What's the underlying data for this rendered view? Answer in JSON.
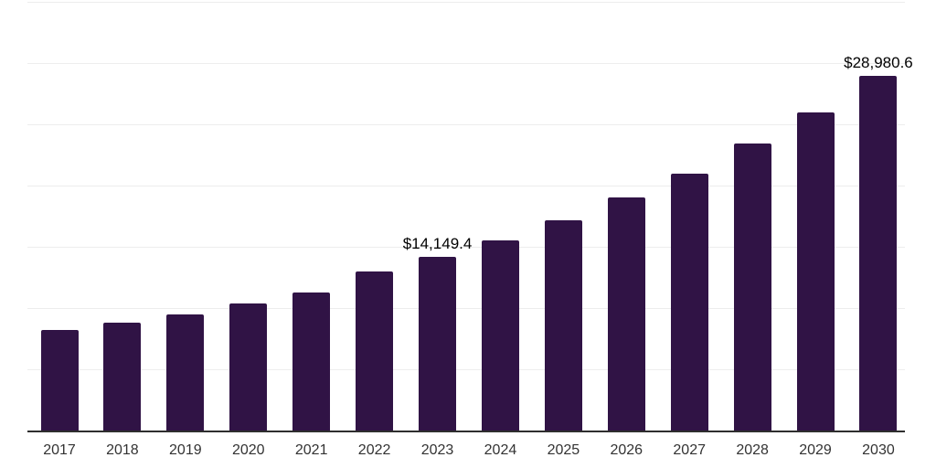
{
  "chart_data": {
    "type": "bar",
    "title": "",
    "xlabel": "",
    "ylabel": "",
    "categories": [
      "2017",
      "2018",
      "2019",
      "2020",
      "2021",
      "2022",
      "2023",
      "2024",
      "2025",
      "2026",
      "2027",
      "2028",
      "2029",
      "2030"
    ],
    "values": [
      8200,
      8800,
      9500,
      10400,
      11300,
      13000,
      14149.4,
      15500,
      17200,
      19000,
      21000,
      23400,
      26000,
      28980.6
    ],
    "annotations": [
      {
        "category": "2023",
        "label": "$14,149.4"
      },
      {
        "category": "2030",
        "label": "$28,980.6"
      }
    ],
    "ylim": [
      0,
      35000
    ],
    "gridline_values": [
      5000,
      10000,
      15000,
      20000,
      25000,
      30000,
      35000
    ],
    "grid": true,
    "legend": "none",
    "y_axis_labels_visible": false
  },
  "colors": {
    "background": "#ffffff",
    "bar": "#301345",
    "gridline": "#ededed",
    "axis_line": "#2e2e2e",
    "tick_label": "#333333",
    "data_label": "#000000"
  }
}
